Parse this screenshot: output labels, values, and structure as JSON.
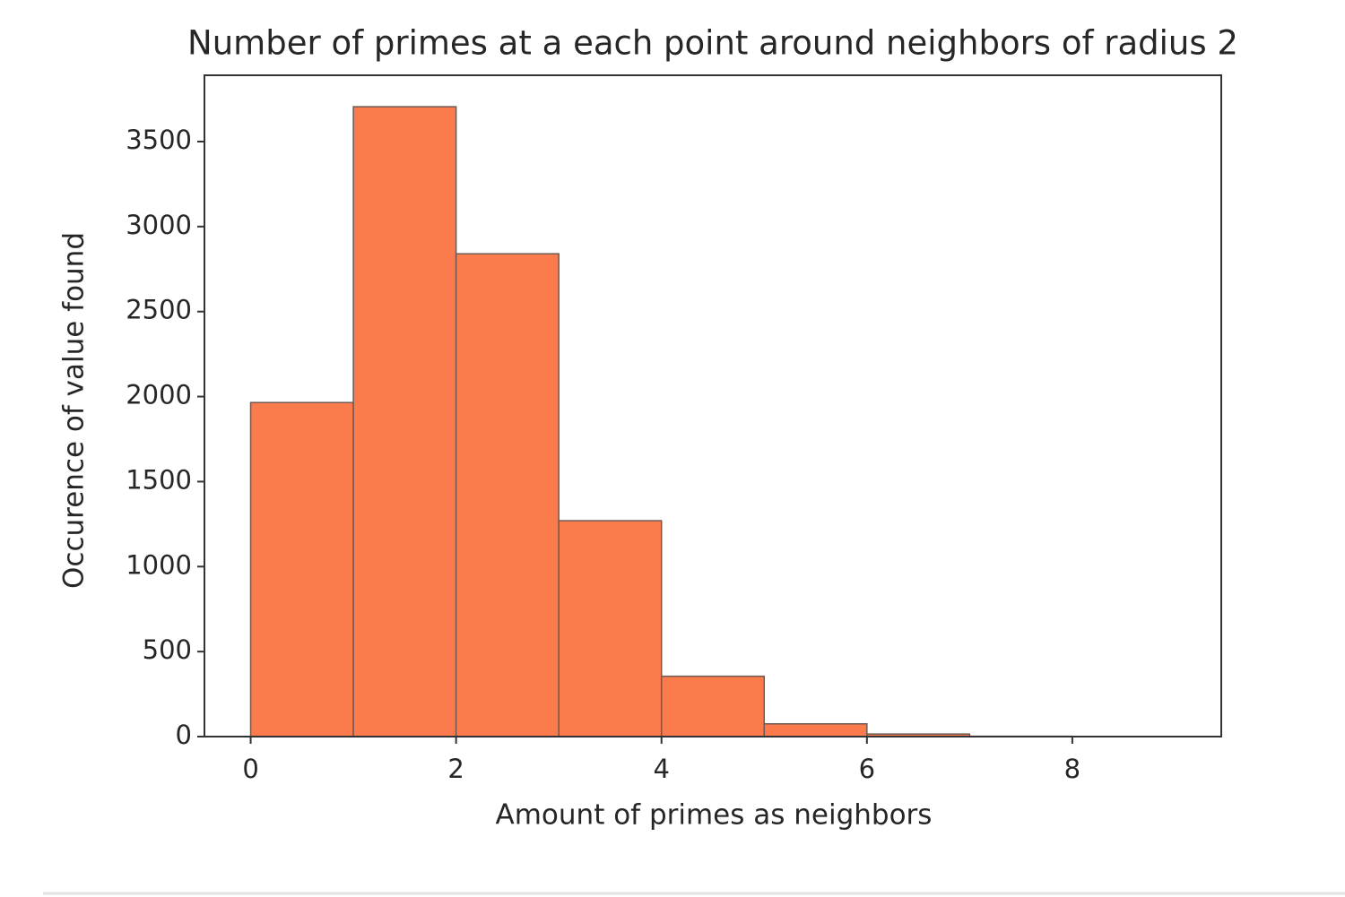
{
  "chart_data": {
    "type": "histogram",
    "title": "Number of primes at a each point around neighbors of radius 2",
    "x_label": "Amount of primes as neighbors",
    "y_label": "Occurence of value found",
    "bins": [
      0,
      1,
      2,
      3,
      4,
      5,
      6,
      7,
      8,
      9
    ],
    "values": [
      1965,
      3705,
      2840,
      1270,
      355,
      75,
      15,
      2,
      1
    ],
    "color": "#fc7b4c",
    "edge_color": "#6e5a52",
    "xlim": [
      -0.45,
      9.45
    ],
    "ylim": [
      0,
      3890
    ],
    "xticks": [
      0,
      2,
      4,
      6,
      8
    ],
    "yticks": [
      0,
      500,
      1000,
      1500,
      2000,
      2500,
      3000,
      3500
    ],
    "grid": false
  }
}
